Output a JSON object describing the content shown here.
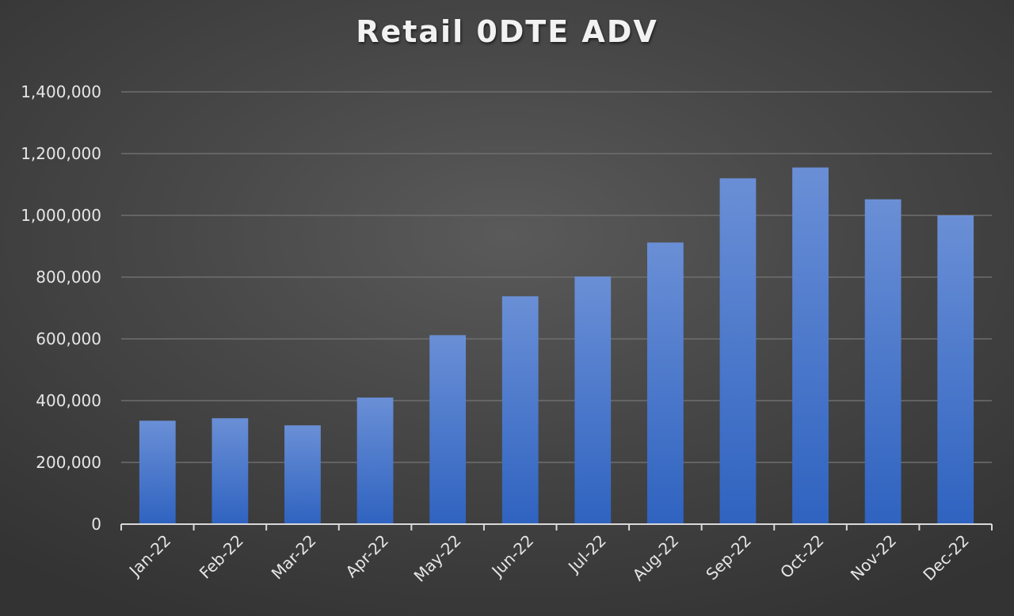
{
  "chart_data": {
    "type": "bar",
    "title": "Retail 0DTE ADV",
    "xlabel": "",
    "ylabel": "",
    "categories": [
      "Jan-22",
      "Feb-22",
      "Mar-22",
      "Apr-22",
      "May-22",
      "Jun-22",
      "Jul-22",
      "Aug-22",
      "Sep-22",
      "Oct-22",
      "Nov-22",
      "Dec-22"
    ],
    "values": [
      335000,
      343000,
      320000,
      410000,
      612000,
      738000,
      802000,
      912000,
      1120000,
      1155000,
      1052000,
      1000000
    ],
    "ylim": [
      0,
      1400000
    ],
    "yticks": [
      0,
      200000,
      400000,
      600000,
      800000,
      1000000,
      1200000,
      1400000
    ],
    "ytick_labels": [
      "0",
      "200,000",
      "400,000",
      "600,000",
      "800,000",
      "1,000,000",
      "1,200,000",
      "1,400,000"
    ],
    "grid": true,
    "legend": "none",
    "colors": {
      "bar_top": "#6a8fd6",
      "bar_bottom": "#2f63c0",
      "grid": "#6e6e6e",
      "axis": "#d9d9d9",
      "text": "#e6e6e6"
    }
  }
}
